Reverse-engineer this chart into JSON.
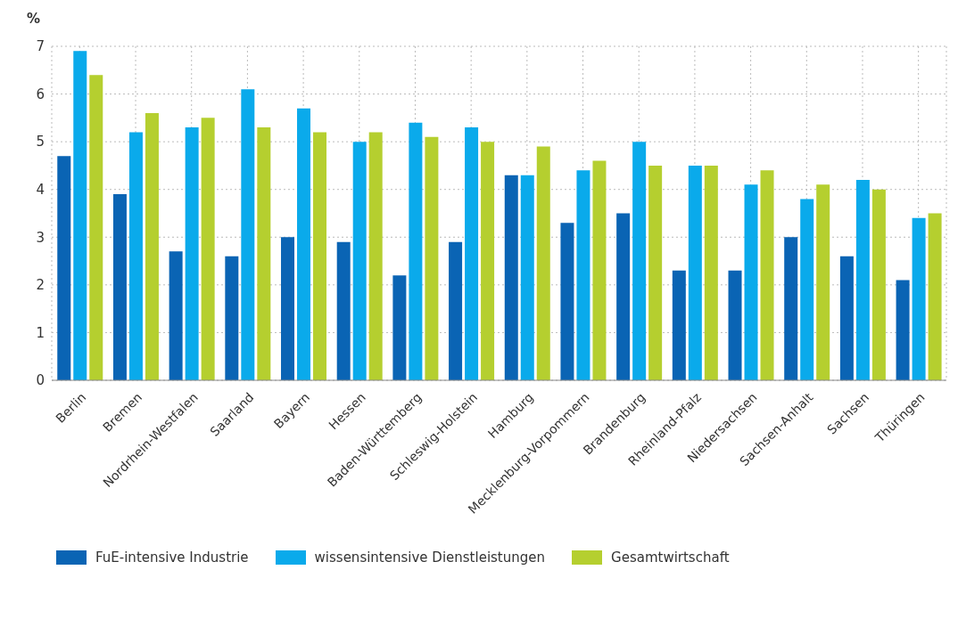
{
  "chart_data": {
    "type": "bar",
    "ylabel": "%",
    "categories": [
      "Berlin",
      "Bremen",
      "Nordrhein-Westfalen",
      "Saarland",
      "Bayern",
      "Hessen",
      "Baden-Württemberg",
      "Schleswig-Holstein",
      "Hamburg",
      "Mecklenburg-Vorpommern",
      "Brandenburg",
      "Rheinland-Pfalz",
      "Niedersachsen",
      "Sachsen-Anhalt",
      "Sachsen",
      "Thüringen"
    ],
    "series": [
      {
        "name": "FuE-intensive Industrie",
        "color": "#0a64b4",
        "values": [
          4.7,
          3.9,
          2.7,
          2.6,
          3.0,
          2.9,
          2.2,
          2.9,
          4.3,
          3.3,
          3.5,
          2.3,
          2.3,
          3.0,
          2.6,
          2.1
        ]
      },
      {
        "name": "wissensintensive Dienstleistungen",
        "color": "#0aaaeb",
        "values": [
          6.9,
          5.2,
          5.3,
          6.1,
          5.7,
          5.0,
          5.4,
          5.3,
          4.3,
          4.4,
          5.0,
          4.5,
          4.1,
          3.8,
          4.2,
          3.4
        ]
      },
      {
        "name": "Gesamtwirtschaft",
        "color": "#b5cf2f",
        "values": [
          6.4,
          5.6,
          5.5,
          5.3,
          5.2,
          5.2,
          5.1,
          5.0,
          4.9,
          4.6,
          4.5,
          4.5,
          4.4,
          4.1,
          4.0,
          3.5
        ]
      }
    ],
    "ylim": [
      0,
      7
    ],
    "yticks": [
      0,
      1,
      2,
      3,
      4,
      5,
      6,
      7
    ],
    "grid": true,
    "legend": "bottom left"
  }
}
